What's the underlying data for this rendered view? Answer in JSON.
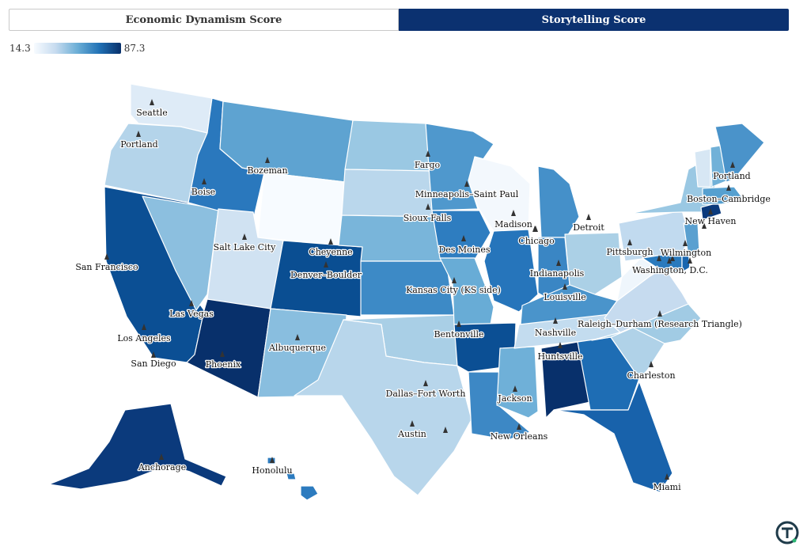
{
  "tabs": [
    {
      "label": "Economic Dynamism Score",
      "active": false
    },
    {
      "label": "Storytelling Score",
      "active": true
    }
  ],
  "legend": {
    "min": "14.3",
    "max": "87.3"
  },
  "colors": {
    "scale": [
      "#f7fbff",
      "#c6dbef",
      "#6baed6",
      "#2171b5",
      "#08306b"
    ],
    "accent": "#0b3170"
  },
  "cities": [
    {
      "name": "Seattle"
    },
    {
      "name": "Portland"
    },
    {
      "name": "Bozeman"
    },
    {
      "name": "Boise"
    },
    {
      "name": "Fargo"
    },
    {
      "name": "Minneapolis–Saint Paul"
    },
    {
      "name": "Sioux Falls"
    },
    {
      "name": "Madison"
    },
    {
      "name": "Chicago"
    },
    {
      "name": "Detroit"
    },
    {
      "name": "Salt Lake City"
    },
    {
      "name": "Cheyenne"
    },
    {
      "name": "San Francisco"
    },
    {
      "name": "Denver–Boulder"
    },
    {
      "name": "Des Moines"
    },
    {
      "name": "Indianapolis"
    },
    {
      "name": "Pittsburgh"
    },
    {
      "name": "Wilmington"
    },
    {
      "name": "Washington, D.C."
    },
    {
      "name": "Kansas City (KS side)"
    },
    {
      "name": "Louisville"
    },
    {
      "name": "Las Vegas"
    },
    {
      "name": "Nashville"
    },
    {
      "name": "Raleigh–Durham (Research Triangle)"
    },
    {
      "name": "Los Angeles"
    },
    {
      "name": "Bentonville"
    },
    {
      "name": "Albuquerque"
    },
    {
      "name": "Huntsville"
    },
    {
      "name": "San Diego"
    },
    {
      "name": "Phoenix"
    },
    {
      "name": "Charleston"
    },
    {
      "name": "Dallas–Fort Worth"
    },
    {
      "name": "Jackson"
    },
    {
      "name": "Austin"
    },
    {
      "name": "New Orleans"
    },
    {
      "name": "Anchorage"
    },
    {
      "name": "Honolulu"
    },
    {
      "name": "Miami"
    },
    {
      "name": "Portland"
    },
    {
      "name": "Boston–Cambridge"
    },
    {
      "name": "New Haven"
    }
  ]
}
